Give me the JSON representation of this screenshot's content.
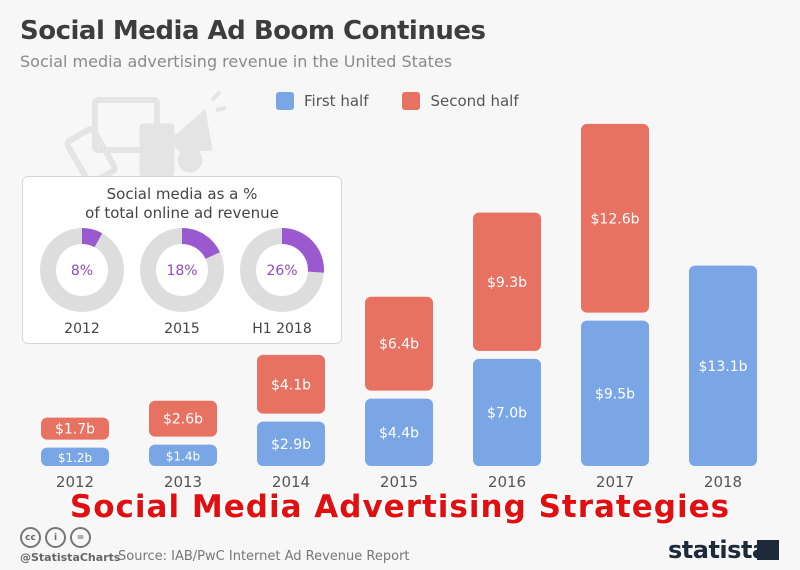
{
  "header": {
    "title": "Social Media Ad Boom Continues",
    "subtitle": "Social media advertising revenue in the United States"
  },
  "colors": {
    "first_half": "#7aa6e6",
    "second_half": "#e87262",
    "donut_fill": "#9b59d0",
    "donut_bg": "#dddddd"
  },
  "chart_data": {
    "type": "bar",
    "stacked": true,
    "title": "Social Media Ad Boom Continues",
    "subtitle": "Social media advertising revenue in the United States",
    "xlabel": "",
    "ylabel": "",
    "unit": "billion USD",
    "legend_placement": "top-center",
    "categories": [
      "2012",
      "2013",
      "2014",
      "2015",
      "2016",
      "2017",
      "2018"
    ],
    "series": [
      {
        "name": "First half",
        "values": [
          1.2,
          1.4,
          2.9,
          4.4,
          7.0,
          9.5,
          13.1
        ],
        "labels": [
          "$1.2b",
          "$1.4b",
          "$2.9b",
          "$4.4b",
          "$7.0b",
          "$9.5b",
          "$13.1b"
        ]
      },
      {
        "name": "Second half",
        "values": [
          1.7,
          2.6,
          4.1,
          6.4,
          9.3,
          12.6,
          null
        ],
        "labels": [
          "$1.7b",
          "$2.6b",
          "$4.1b",
          "$6.4b",
          "$9.3b",
          "$12.6b",
          ""
        ]
      }
    ],
    "grid": false
  },
  "inset": {
    "title_line1": "Social media as a %",
    "title_line2": "of total online ad revenue",
    "donuts": [
      {
        "year": "2012",
        "label": "8%",
        "value": 8
      },
      {
        "year": "2015",
        "label": "18%",
        "value": 18
      },
      {
        "year": "H1 2018",
        "label": "26%",
        "value": 26
      }
    ]
  },
  "overlay_text": "Social Media Advertising Strategies",
  "footer": {
    "handle": "@StatistaCharts",
    "source": "Source: IAB/PwC Internet Ad Revenue Report",
    "logo": "statista",
    "cc_icons": [
      "cc",
      "i",
      "="
    ]
  }
}
